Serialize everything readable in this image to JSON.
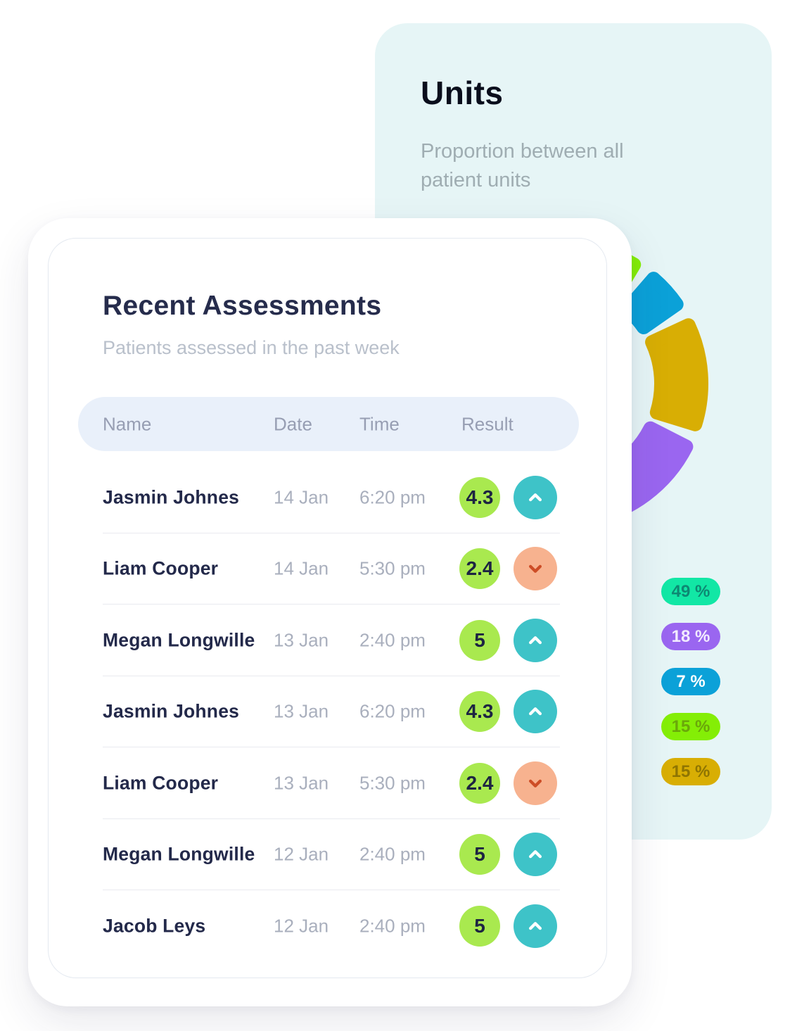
{
  "page": {
    "background": "#ffffff"
  },
  "units_card": {
    "title": "Units",
    "subtitle": "Proportion between all patient units",
    "background": "#e6f5f6",
    "chart_data": {
      "type": "pie",
      "donut": true,
      "title": "Units",
      "subtitle": "Proportion between all patient units",
      "legend_position": "bottom-right",
      "start_angle_deg": -16,
      "gap_degrees": 10,
      "draw_order": [
        3,
        2,
        4,
        1,
        0
      ],
      "segments": [
        {
          "label": "49 %",
          "value": 49,
          "color": "#12e7a5",
          "text_color": "#0d8973"
        },
        {
          "label": "18 %",
          "value": 18,
          "color": "#9a66f0",
          "text_color": "#f2ebff"
        },
        {
          "label": "7 %",
          "value": 7,
          "color": "#0ba1d8",
          "text_color": "#ffffff"
        },
        {
          "label": "15 %",
          "value": 15,
          "color": "#84ee06",
          "text_color": "#6aa80a"
        },
        {
          "label": "15 %",
          "value": 15,
          "color": "#d8ae04",
          "text_color": "#8f7502"
        }
      ]
    }
  },
  "assessments_card": {
    "title": "Recent Assessments",
    "subtitle": "Patients assessed in the past week",
    "columns": [
      "Name",
      "Date",
      "Time",
      "Result"
    ],
    "rows": [
      {
        "name": "Jasmin Johnes",
        "date": "14 Jan",
        "time": "6:20 pm",
        "result": "4.3",
        "trend": "up"
      },
      {
        "name": "Liam Cooper",
        "date": "14 Jan",
        "time": "5:30 pm",
        "result": "2.4",
        "trend": "down"
      },
      {
        "name": "Megan Longwille",
        "date": "13 Jan",
        "time": "2:40 pm",
        "result": "5",
        "trend": "up"
      },
      {
        "name": "Jasmin Johnes",
        "date": "13 Jan",
        "time": "6:20 pm",
        "result": "4.3",
        "trend": "up"
      },
      {
        "name": "Liam Cooper",
        "date": "13 Jan",
        "time": "5:30 pm",
        "result": "2.4",
        "trend": "down"
      },
      {
        "name": "Megan Longwille",
        "date": "12 Jan",
        "time": "2:40 pm",
        "result": "5",
        "trend": "up"
      },
      {
        "name": "Jacob Leys",
        "date": "12 Jan",
        "time": "2:40 pm",
        "result": "5",
        "trend": "up"
      }
    ],
    "colors": {
      "result_badge_bg": "#a9e94f",
      "result_badge_text": "#1d2442",
      "trend_up_bg": "#3ec3c8",
      "trend_up_icon": "#ffffff",
      "trend_down_bg": "#f7b28f",
      "trend_down_icon": "#cd4d26"
    }
  }
}
